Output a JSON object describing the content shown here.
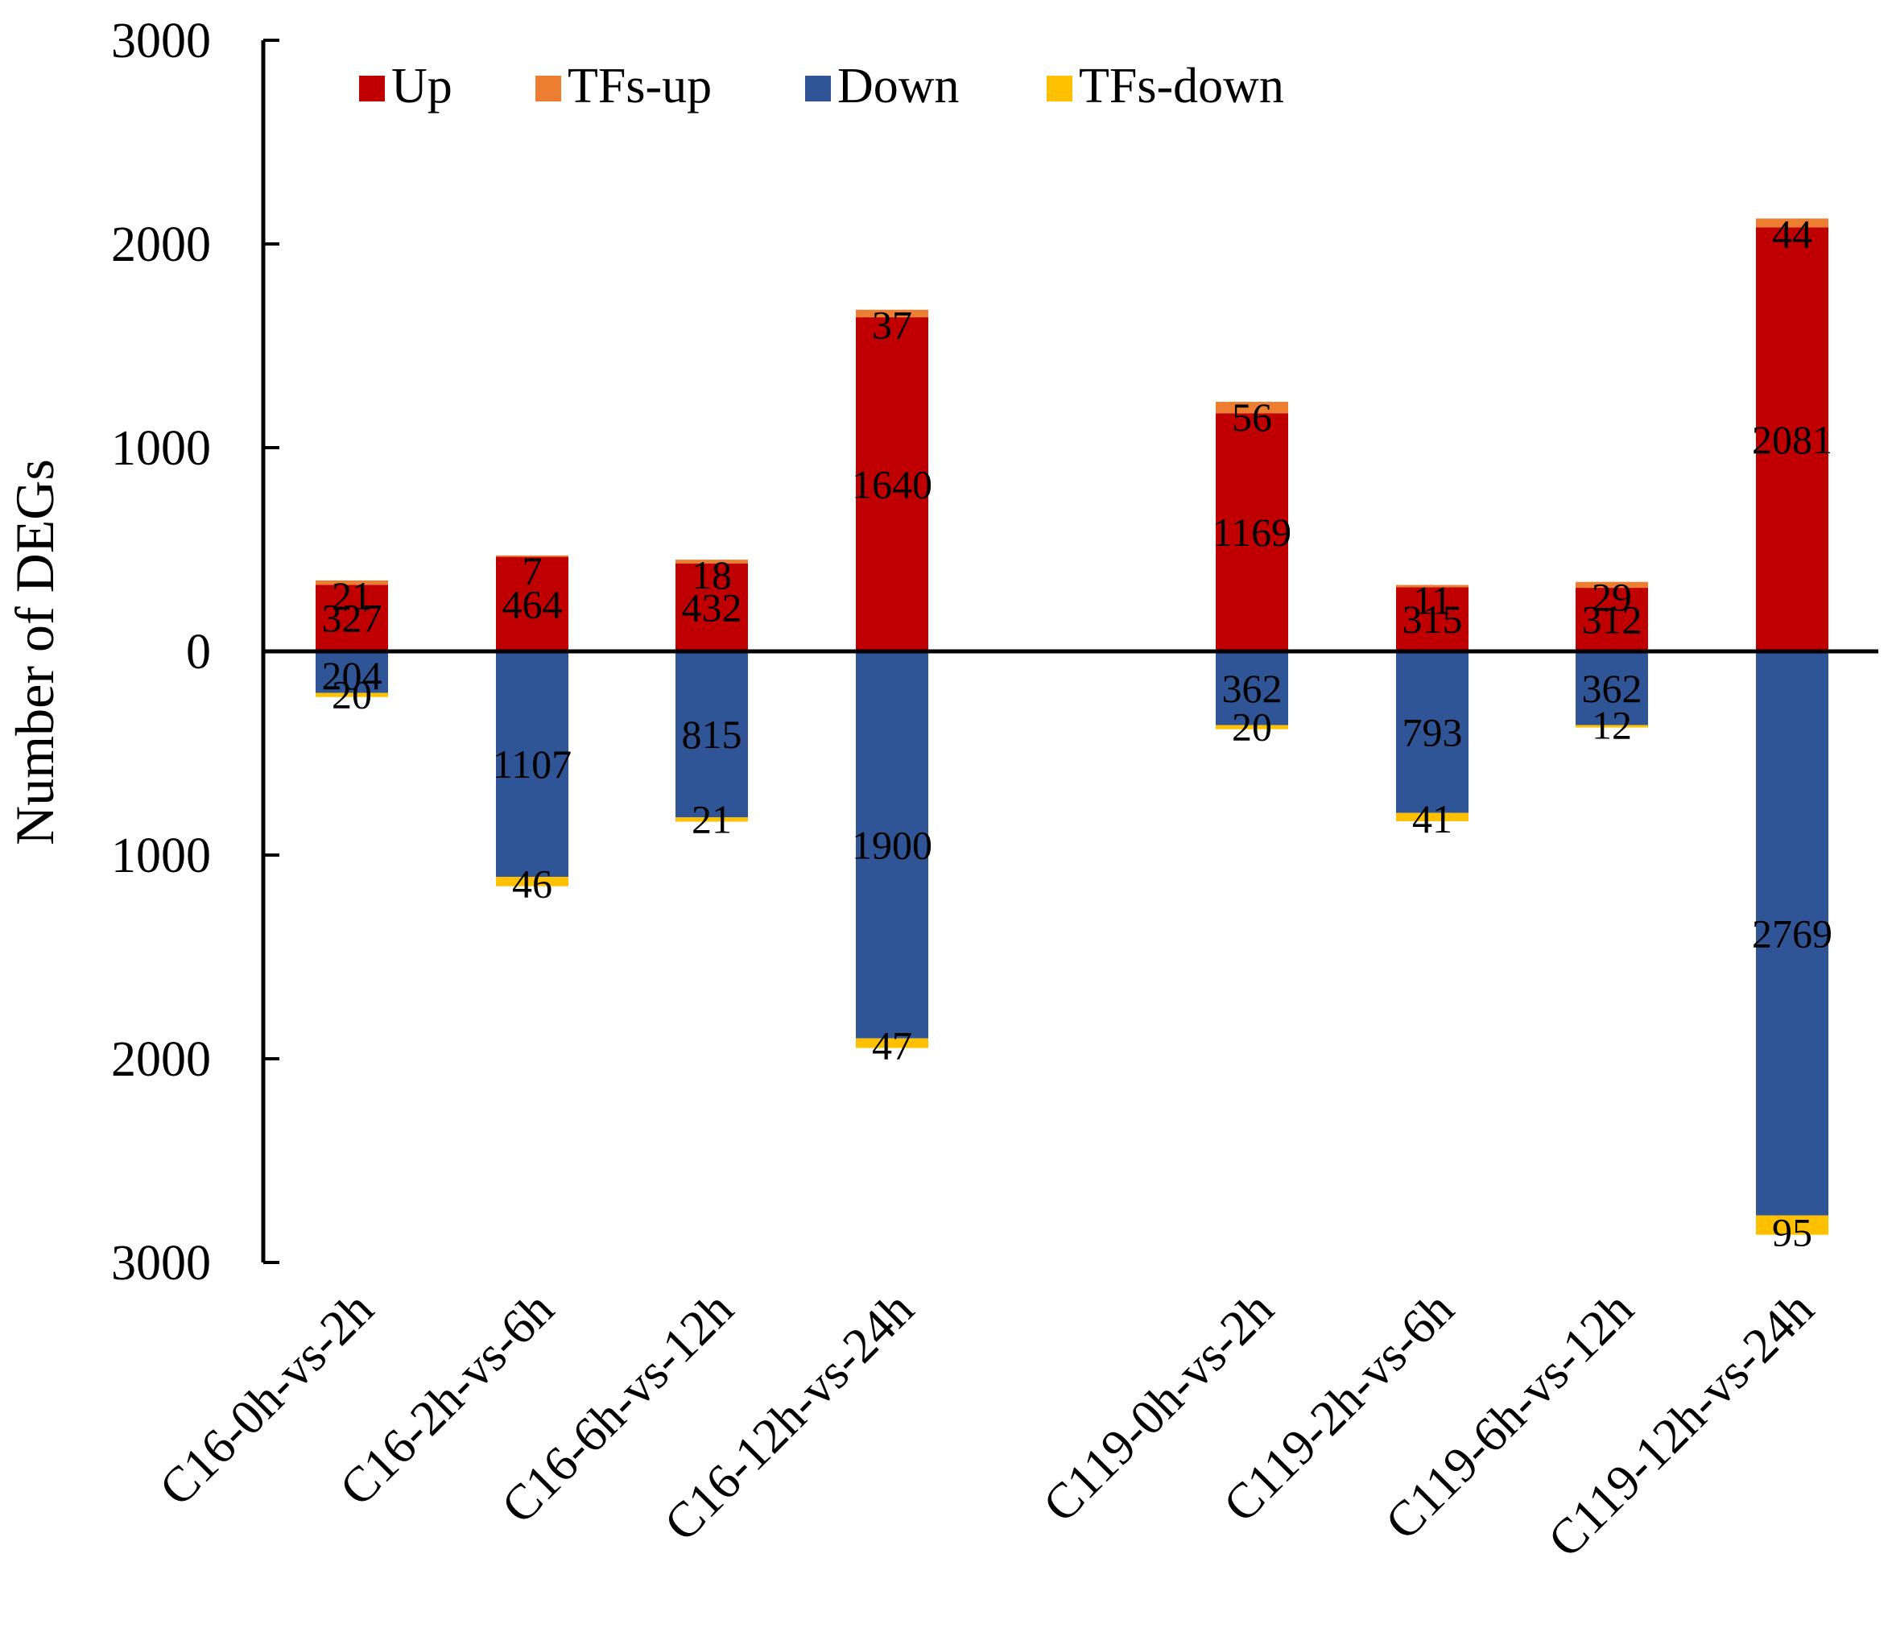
{
  "chart_data": {
    "type": "bar",
    "stacked": true,
    "ylabel": "Number of DEGs",
    "xlabel": "",
    "ylim": [
      -3000,
      3000
    ],
    "yticks": [
      3000,
      2000,
      1000,
      0,
      1000,
      2000,
      3000
    ],
    "categories": [
      "C16-0h-vs-2h",
      "C16-2h-vs-6h",
      "C16-6h-vs-12h",
      "C16-12h-vs-24h",
      "C119-0h-vs-2h",
      "C119-2h-vs-6h",
      "C119-6h-vs-12h",
      "C119-12h-vs-24h"
    ],
    "series": [
      {
        "name": "Up",
        "color": "#C00000",
        "values": [
          327,
          464,
          432,
          1640,
          1169,
          315,
          312,
          2081
        ]
      },
      {
        "name": "TFs-up",
        "color": "#ED7D31",
        "values": [
          21,
          7,
          18,
          37,
          56,
          11,
          29,
          44
        ]
      },
      {
        "name": "Down",
        "color": "#2F5597",
        "values": [
          204,
          1107,
          815,
          1900,
          362,
          793,
          362,
          2769
        ]
      },
      {
        "name": "TFs-down",
        "color": "#FFC000",
        "values": [
          20,
          46,
          21,
          47,
          20,
          41,
          12,
          95
        ]
      }
    ],
    "legend": "top"
  }
}
